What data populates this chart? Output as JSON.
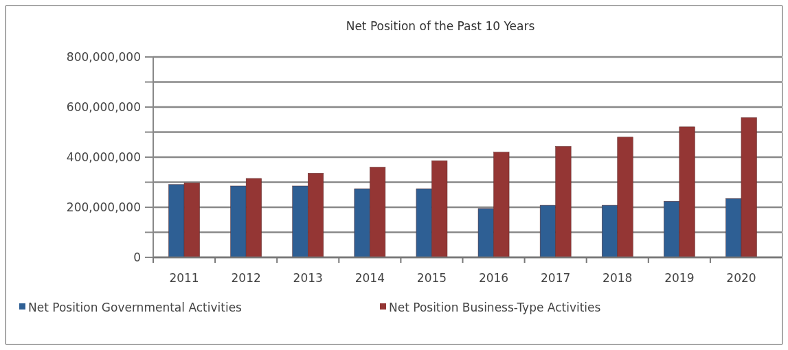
{
  "chart_data": {
    "type": "bar",
    "title": "Net Position of the Past 10 Years",
    "categories": [
      "2011",
      "2012",
      "2013",
      "2014",
      "2015",
      "2016",
      "2017",
      "2018",
      "2019",
      "2020"
    ],
    "series": [
      {
        "name": "Net Position Governmental Activities",
        "color": "#2e5f94",
        "values": [
          291000000,
          285000000,
          285000000,
          274000000,
          274000000,
          195000000,
          208000000,
          208000000,
          224000000,
          235000000
        ]
      },
      {
        "name": "Net Position Business-Type Activities",
        "color": "#943634",
        "values": [
          297000000,
          315000000,
          336000000,
          360000000,
          386000000,
          420000000,
          443000000,
          480000000,
          521000000,
          558000000
        ]
      }
    ],
    "ylim": [
      0,
      800000000
    ],
    "yticks": [
      {
        "value": 0,
        "label": "0"
      },
      {
        "value": 100000000,
        "label": null
      },
      {
        "value": 200000000,
        "label": "200,000,000"
      },
      {
        "value": 300000000,
        "label": null
      },
      {
        "value": 400000000,
        "label": "400,000,000"
      },
      {
        "value": 500000000,
        "label": null
      },
      {
        "value": 600000000,
        "label": "600,000,000"
      },
      {
        "value": 700000000,
        "label": null
      },
      {
        "value": 800000000,
        "label": "800,000,000"
      }
    ],
    "grid": true,
    "legend": "bottom"
  }
}
